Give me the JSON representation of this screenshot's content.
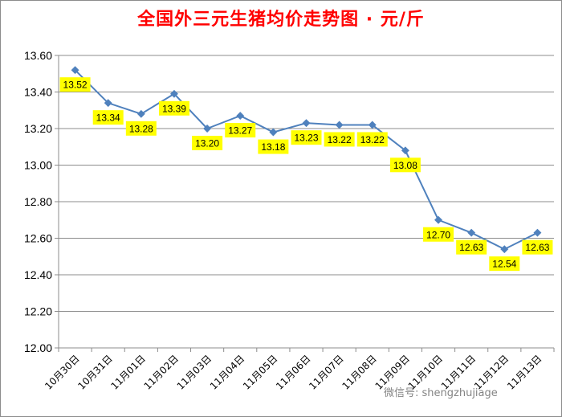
{
  "chart_data": {
    "type": "line",
    "title": "全国外三元生猪均价走势图 · 元/斤",
    "categories": [
      "10月30日",
      "10月31日",
      "11月01日",
      "11月02日",
      "11月03日",
      "11月04日",
      "11月05日",
      "11月06日",
      "11月07日",
      "11月08日",
      "11月09日",
      "11月10日",
      "11月11日",
      "11月12日",
      "11月13日"
    ],
    "series": [
      {
        "values": [
          13.52,
          13.34,
          13.28,
          13.39,
          13.2,
          13.27,
          13.18,
          13.23,
          13.22,
          13.22,
          13.08,
          12.7,
          12.63,
          12.54,
          12.63
        ]
      }
    ],
    "data_labels": [
      "13.52",
      "13.34",
      "13.28",
      "13.39",
      "13.20",
      "13.27",
      "13.18",
      "13.23",
      "13.22",
      "13.22",
      "13.08",
      "12.70",
      "12.63",
      "12.54",
      "12.63"
    ],
    "yticks": [
      "12.00",
      "12.20",
      "12.40",
      "12.60",
      "12.80",
      "13.00",
      "13.20",
      "13.40",
      "13.60"
    ],
    "ylim": [
      12.0,
      13.6
    ],
    "grid": true,
    "line_color": "#4f81bd",
    "label_bg": "#ffff00"
  },
  "watermark": "微信号: shengzhujiage"
}
